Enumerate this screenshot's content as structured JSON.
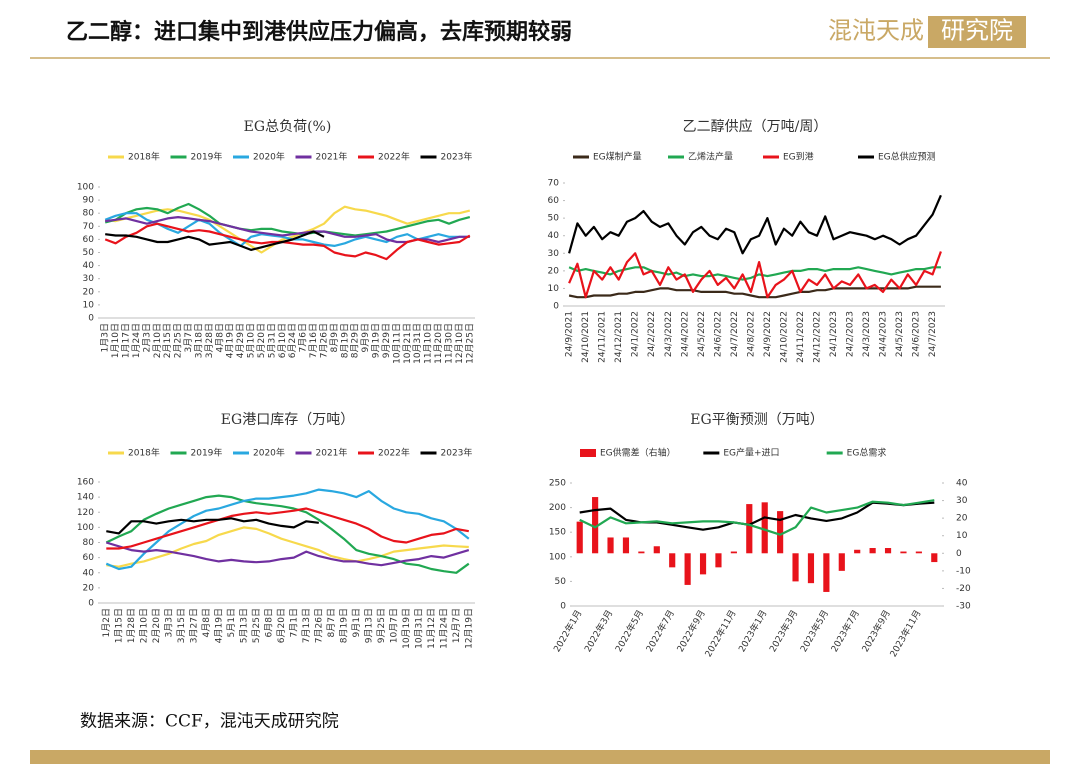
{
  "header": {
    "title": "乙二醇：进口集中到港供应压力偏高，去库预期较弱",
    "logo": "混沌天成",
    "logo_box": "研究院"
  },
  "source": "数据来源：CCF，混沌天成研究院",
  "chart_data": [
    {
      "type": "line",
      "title": "EG总负荷(%)",
      "categories": [
        "1月3日",
        "1月10日",
        "1月17日",
        "1月24日",
        "2月3日",
        "2月10日",
        "2月15日",
        "2月25日",
        "3月7日",
        "3月18日",
        "3月28日",
        "4月8日",
        "4月19日",
        "4月29日",
        "5月10日",
        "5月20日",
        "5月31日",
        "6月10日",
        "6月24日",
        "7月6日",
        "7月16日",
        "7月26日",
        "8月9日",
        "8月19日",
        "8月29日",
        "9月9日",
        "9月19日",
        "9月29日",
        "10月11日",
        "10月21日",
        "10月31日",
        "11月10日",
        "11月20日",
        "11月30日",
        "12月10日",
        "12月25日"
      ],
      "ylim": [
        0,
        100
      ],
      "yticks": [
        0,
        10,
        20,
        30,
        40,
        50,
        60,
        70,
        80,
        90,
        100
      ],
      "series": [
        {
          "name": "2018年",
          "color": "#f7d94c",
          "values": [
            75,
            74,
            76,
            78,
            80,
            82,
            83,
            82,
            80,
            78,
            75,
            70,
            65,
            60,
            55,
            50,
            55,
            60,
            62,
            65,
            68,
            72,
            80,
            85,
            83,
            82,
            80,
            78,
            75,
            72,
            74,
            76,
            78,
            80,
            80,
            82
          ]
        },
        {
          "name": "2019年",
          "color": "#21a852",
          "values": [
            73,
            75,
            80,
            83,
            84,
            83,
            80,
            84,
            87,
            83,
            78,
            72,
            70,
            68,
            67,
            68,
            68,
            66,
            65,
            64,
            65,
            66,
            65,
            64,
            63,
            64,
            65,
            66,
            68,
            70,
            72,
            74,
            75,
            72,
            75,
            77
          ]
        },
        {
          "name": "2020年",
          "color": "#29a8e0",
          "values": [
            75,
            78,
            80,
            80,
            75,
            72,
            68,
            65,
            70,
            75,
            72,
            65,
            60,
            55,
            62,
            64,
            63,
            62,
            60,
            60,
            58,
            56,
            55,
            57,
            60,
            62,
            60,
            58,
            62,
            64,
            60,
            62,
            64,
            62,
            62,
            62
          ]
        },
        {
          "name": "2021年",
          "color": "#7030a0",
          "values": [
            74,
            75,
            76,
            74,
            72,
            74,
            76,
            77,
            76,
            75,
            74,
            72,
            70,
            68,
            66,
            65,
            64,
            63,
            64,
            65,
            66,
            66,
            64,
            62,
            62,
            63,
            64,
            60,
            58,
            58,
            60,
            60,
            58,
            60,
            62,
            62
          ]
        },
        {
          "name": "2022年",
          "color": "#e8131b",
          "values": [
            60,
            57,
            62,
            65,
            70,
            72,
            70,
            68,
            66,
            67,
            66,
            64,
            62,
            60,
            58,
            57,
            58,
            58,
            57,
            56,
            56,
            55,
            50,
            48,
            47,
            50,
            48,
            45,
            52,
            58,
            60,
            58,
            56,
            57,
            58,
            63
          ]
        },
        {
          "name": "2023年",
          "color": "#000000",
          "values": [
            64,
            63,
            63,
            62,
            60,
            58,
            58,
            60,
            62,
            60,
            56,
            57,
            58,
            55,
            52,
            54,
            56,
            58,
            60,
            63,
            66,
            62,
            null,
            null,
            null,
            null,
            null,
            null,
            null,
            null,
            null,
            null,
            null,
            null,
            null,
            null
          ]
        }
      ]
    },
    {
      "type": "line",
      "title": "乙二醇供应（万吨/周）",
      "categories": [
        "24/9/2021",
        null,
        "24/10/2021",
        null,
        "24/11/2021",
        null,
        "24/12/2021",
        null,
        "24/1/2022",
        null,
        "24/2/2022",
        null,
        "24/3/2022",
        null,
        "24/4/2022",
        null,
        "24/5/2022",
        null,
        "24/6/2022",
        null,
        "24/7/2022",
        null,
        "24/8/2022",
        null,
        "24/9/2022",
        null,
        "24/10/2022",
        null,
        "24/11/2022",
        null,
        "24/12/2022",
        null,
        "24/1/2023",
        null,
        "24/2/2023",
        null,
        "24/3/2023",
        null,
        "24/4/2023",
        null,
        "24/5/2023",
        null,
        "24/6/2023",
        null,
        "24/7/2023",
        null
      ],
      "ylim": [
        0,
        70
      ],
      "yticks": [
        0,
        10,
        20,
        30,
        40,
        50,
        60,
        70
      ],
      "series": [
        {
          "name": "EG煤制产量",
          "color": "#3b2a1a",
          "values": [
            6,
            5,
            5,
            6,
            6,
            6,
            7,
            7,
            8,
            8,
            9,
            10,
            10,
            9,
            9,
            9,
            8,
            8,
            8,
            8,
            7,
            7,
            6,
            5,
            5,
            5,
            6,
            7,
            8,
            8,
            9,
            9,
            10,
            10,
            10,
            10,
            10,
            10,
            10,
            10,
            10,
            10,
            11,
            11,
            11,
            11
          ]
        },
        {
          "name": "乙烯法产量",
          "color": "#21a852",
          "values": [
            22,
            20,
            21,
            20,
            19,
            18,
            20,
            21,
            22,
            22,
            20,
            19,
            18,
            19,
            17,
            18,
            17,
            17,
            18,
            17,
            16,
            15,
            16,
            18,
            17,
            18,
            19,
            20,
            20,
            21,
            21,
            20,
            21,
            21,
            21,
            22,
            21,
            20,
            19,
            18,
            19,
            20,
            21,
            21,
            22,
            22
          ]
        },
        {
          "name": "EG到港",
          "color": "#e8131b",
          "values": [
            13,
            24,
            5,
            20,
            15,
            22,
            15,
            25,
            30,
            18,
            20,
            12,
            22,
            15,
            18,
            8,
            15,
            20,
            12,
            16,
            10,
            18,
            8,
            25,
            5,
            12,
            15,
            20,
            8,
            15,
            12,
            18,
            10,
            14,
            12,
            18,
            10,
            12,
            8,
            15,
            10,
            18,
            12,
            20,
            18,
            31
          ]
        },
        {
          "name": "EG总供应预测",
          "color": "#000000",
          "values": [
            30,
            47,
            40,
            45,
            38,
            42,
            40,
            48,
            50,
            54,
            48,
            45,
            47,
            40,
            35,
            42,
            45,
            40,
            38,
            44,
            42,
            30,
            38,
            40,
            50,
            35,
            44,
            40,
            48,
            42,
            40,
            51,
            38,
            40,
            42,
            41,
            40,
            38,
            40,
            38,
            35,
            38,
            40,
            46,
            52,
            63
          ]
        }
      ]
    },
    {
      "type": "line",
      "title": "EG港口库存（万吨）",
      "categories": [
        "1月2日",
        "1月15日",
        "1月28日",
        "2月10日",
        "2月20日",
        "3月3日",
        "3月15日",
        "3月27日",
        "4月8日",
        "4月19日",
        "5月1日",
        "5月13日",
        "5月25日",
        "6月8日",
        "6月20日",
        "7月1日",
        "7月13日",
        "7月26日",
        "8月7日",
        "8月19日",
        "9月1日",
        "9月13日",
        "9月25日",
        "10月7日",
        "10月19日",
        "10月31日",
        "11月12日",
        "11月24日",
        "12月7日",
        "12月19日"
      ],
      "ylim": [
        0,
        160
      ],
      "yticks": [
        0,
        20,
        40,
        60,
        80,
        100,
        120,
        140,
        160
      ],
      "series": [
        {
          "name": "2018年",
          "color": "#f7d94c",
          "values": [
            50,
            48,
            52,
            55,
            60,
            65,
            72,
            78,
            82,
            90,
            95,
            100,
            98,
            92,
            85,
            80,
            75,
            70,
            62,
            58,
            55,
            58,
            62,
            68,
            70,
            72,
            74,
            76,
            75,
            74
          ]
        },
        {
          "name": "2019年",
          "color": "#21a852",
          "values": [
            80,
            88,
            95,
            110,
            118,
            125,
            130,
            135,
            140,
            142,
            140,
            135,
            132,
            130,
            128,
            125,
            120,
            110,
            98,
            85,
            70,
            65,
            62,
            58,
            52,
            50,
            45,
            42,
            40,
            52
          ]
        },
        {
          "name": "2020年",
          "color": "#29a8e0",
          "values": [
            52,
            45,
            48,
            65,
            80,
            95,
            105,
            115,
            122,
            125,
            130,
            135,
            138,
            138,
            140,
            142,
            145,
            150,
            148,
            145,
            140,
            148,
            135,
            125,
            120,
            118,
            112,
            108,
            98,
            85
          ]
        },
        {
          "name": "2021年",
          "color": "#7030a0",
          "values": [
            80,
            75,
            70,
            68,
            70,
            68,
            65,
            62,
            58,
            55,
            57,
            55,
            54,
            55,
            58,
            60,
            68,
            62,
            58,
            55,
            55,
            52,
            50,
            53,
            56,
            58,
            62,
            60,
            65,
            70
          ]
        },
        {
          "name": "2022年",
          "color": "#e8131b",
          "values": [
            72,
            72,
            75,
            80,
            85,
            90,
            95,
            100,
            105,
            110,
            115,
            118,
            120,
            118,
            120,
            122,
            125,
            120,
            115,
            110,
            105,
            98,
            88,
            82,
            80,
            85,
            90,
            92,
            98,
            95
          ]
        },
        {
          "name": "2023年",
          "color": "#000000",
          "values": [
            95,
            92,
            108,
            108,
            105,
            108,
            110,
            108,
            110,
            110,
            112,
            108,
            110,
            105,
            102,
            100,
            108,
            106,
            null,
            null,
            null,
            null,
            null,
            null,
            null,
            null,
            null,
            null,
            null,
            null
          ]
        }
      ]
    },
    {
      "type": "combo",
      "title": "EG平衡预测（万吨）",
      "categories": [
        "2022年1月",
        null,
        "2022年3月",
        null,
        "2022年5月",
        null,
        "2022年7月",
        null,
        "2022年9月",
        null,
        "2022年11月",
        null,
        "2023年1月",
        null,
        "2023年3月",
        null,
        "2023年5月",
        null,
        "2023年7月",
        null,
        "2023年9月",
        null,
        "2023年11月",
        null
      ],
      "ylim": [
        0,
        250
      ],
      "yticks": [
        0,
        50,
        100,
        150,
        200,
        250
      ],
      "y2lim": [
        -30,
        40
      ],
      "y2ticks": [
        -30,
        -20,
        -10,
        0,
        10,
        20,
        30,
        40
      ],
      "series": [
        {
          "name": "EG供需差（右轴）",
          "type": "bar",
          "axis": "y2",
          "color": "#e8131b",
          "values": [
            18,
            32,
            9,
            9,
            1,
            4,
            -8,
            -18,
            -12,
            -8,
            1,
            28,
            29,
            24,
            -16,
            -17,
            -22,
            -10,
            2,
            3,
            3,
            1,
            1,
            -5
          ]
        },
        {
          "name": "EG产量+进口",
          "type": "line",
          "color": "#000000",
          "values": [
            190,
            195,
            198,
            175,
            170,
            170,
            165,
            160,
            155,
            160,
            170,
            165,
            180,
            175,
            185,
            178,
            173,
            178,
            190,
            210,
            208,
            205,
            208,
            210
          ]
        },
        {
          "name": "EG总需求",
          "type": "line",
          "color": "#21a852",
          "values": [
            175,
            160,
            180,
            168,
            170,
            172,
            168,
            170,
            172,
            172,
            170,
            165,
            155,
            145,
            160,
            200,
            190,
            195,
            200,
            212,
            210,
            205,
            210,
            215
          ]
        }
      ]
    }
  ]
}
